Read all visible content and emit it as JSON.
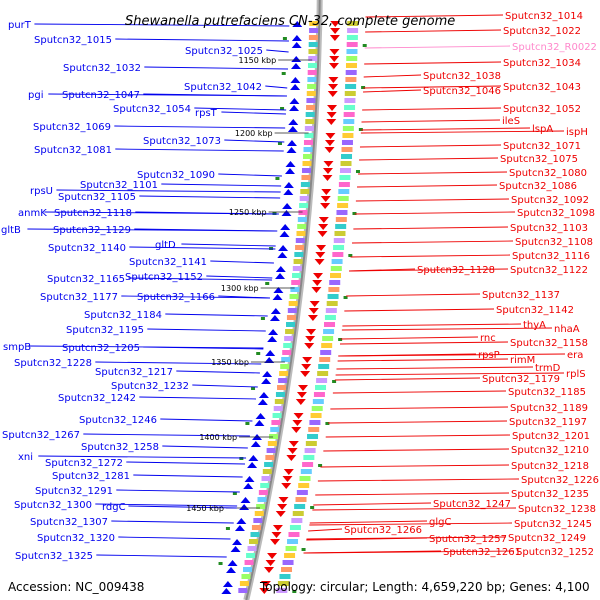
{
  "title": "Shewanella putrefaciens CN-32, complete genome",
  "footer": {
    "accession": "Accession: NC_009438",
    "summary": "Topology: circular; Length: 4,659,220 bp; Genes: 4,100"
  },
  "colors": {
    "forward": "#0000ee",
    "reverse": "#ee0000",
    "rna": "#ff88cc",
    "backbone": "#888888"
  },
  "kbp_marks": [
    "1150 kbp",
    "1200 kbp",
    "1250 kbp",
    "1300 kbp",
    "1350 kbp",
    "1400 kbp",
    "1450 kbp"
  ],
  "left_labels": [
    "purT",
    "Sputcn32_1015",
    "Sputcn32_1025",
    "Sputcn32_1032",
    "Sputcn32_1042",
    "pgi",
    "Sputcn32_1047",
    "Sputcn32_1054",
    "rpsT",
    "Sputcn32_1069",
    "Sputcn32_1073",
    "Sputcn32_1081",
    "Sputcn32_1090",
    "Sputcn32_1101",
    "rpsU",
    "Sputcn32_1105",
    "anmK",
    "Sputcn32_1118",
    "gltB",
    "Sputcn32_1129",
    "gltD",
    "Sputcn32_1140",
    "Sputcn32_1141",
    "Sputcn32_1165",
    "Sputcn32_1152",
    "Sputcn32_1177",
    "Sputcn32_1166",
    "Sputcn32_1184",
    "Sputcn32_1195",
    "Sputcn32_1205",
    "smpB",
    "Sputcn32_1228",
    "Sputcn32_1217",
    "Sputcn32_1232",
    "Sputcn32_1242",
    "Sputcn32_1246",
    "Sputcn32_1267",
    "Sputcn32_1258",
    "xni",
    "Sputcn32_1272",
    "Sputcn32_1281",
    "Sputcn32_1291",
    "Sputcn32_1300",
    "rdgC",
    "Sputcn32_1307",
    "Sputcn32_1320",
    "Sputcn32_1325"
  ],
  "right_labels": [
    "Sputcn32_1014",
    "Sputcn32_1022",
    "Sputcn32_R0022",
    "Sputcn32_1034",
    "Sputcn32_1038",
    "Sputcn32_1043",
    "Sputcn32_1046",
    "Sputcn32_1052",
    "ileS",
    "lspA",
    "ispH",
    "Sputcn32_1071",
    "Sputcn32_1075",
    "Sputcn32_1080",
    "Sputcn32_1086",
    "Sputcn32_1092",
    "Sputcn32_1098",
    "Sputcn32_1103",
    "Sputcn32_1108",
    "Sputcn32_1116",
    "Sputcn32_1128",
    "Sputcn32_1122",
    "Sputcn32_1137",
    "Sputcn32_1142",
    "thyA",
    "nhaA",
    "rnc",
    "Sputcn32_1158",
    "era",
    "rpsP",
    "rimM",
    "trmD",
    "rplS",
    "Sputcn32_1179",
    "Sputcn32_1185",
    "Sputcn32_1189",
    "Sputcn32_1197",
    "Sputcn32_1201",
    "Sputcn32_1210",
    "Sputcn32_1218",
    "Sputcn32_1226",
    "Sputcn32_1235",
    "Sputcn32_1247",
    "Sputcn32_1238",
    "glgC",
    "Sputcn32_1245",
    "Sputcn32_1266",
    "Sputcn32_1257",
    "Sputcn32_1249",
    "Sputcn32_1261",
    "Sputcn32_1252"
  ]
}
